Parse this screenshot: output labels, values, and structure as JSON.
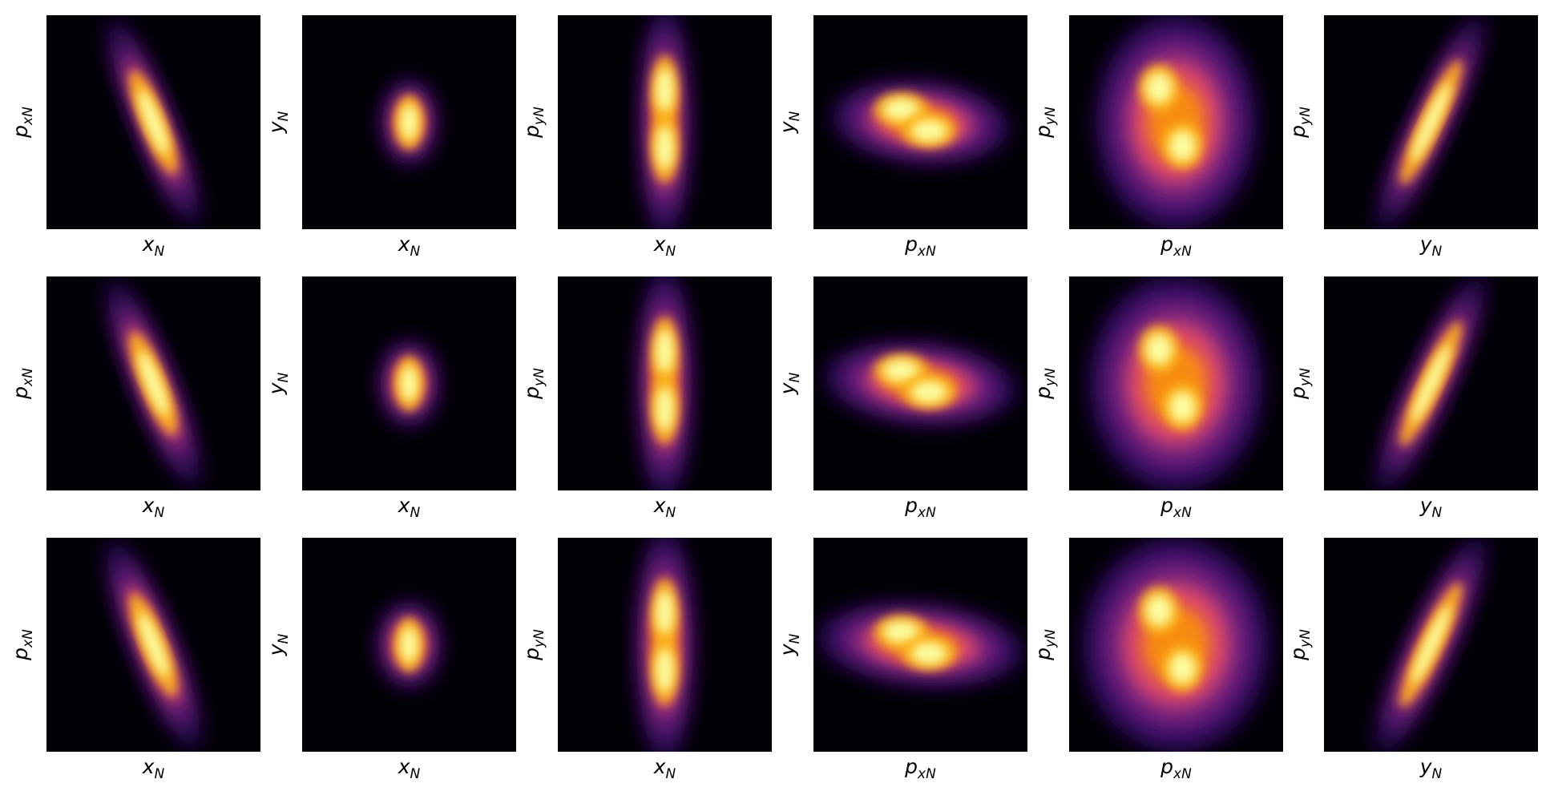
{
  "panels": [
    [
      {
        "xlabel": {
          "base": "x",
          "sub": "N"
        },
        "ylabel": {
          "base": "p",
          "sub": "xN"
        }
      },
      {
        "xlabel": {
          "base": "x",
          "sub": "N"
        },
        "ylabel": {
          "base": "y",
          "sub": "N"
        }
      },
      {
        "xlabel": {
          "base": "x",
          "sub": "N"
        },
        "ylabel": {
          "base": "p",
          "sub": "yN"
        }
      },
      {
        "xlabel": {
          "base": "p",
          "sub": "xN"
        },
        "ylabel": {
          "base": "y",
          "sub": "N"
        }
      },
      {
        "xlabel": {
          "base": "p",
          "sub": "xN"
        },
        "ylabel": {
          "base": "p",
          "sub": "yN"
        }
      },
      {
        "xlabel": {
          "base": "y",
          "sub": "N"
        },
        "ylabel": {
          "base": "p",
          "sub": "yN"
        }
      }
    ],
    [
      {
        "xlabel": {
          "base": "x",
          "sub": "N"
        },
        "ylabel": {
          "base": "p",
          "sub": "xN"
        }
      },
      {
        "xlabel": {
          "base": "x",
          "sub": "N"
        },
        "ylabel": {
          "base": "y",
          "sub": "N"
        }
      },
      {
        "xlabel": {
          "base": "x",
          "sub": "N"
        },
        "ylabel": {
          "base": "p",
          "sub": "yN"
        }
      },
      {
        "xlabel": {
          "base": "p",
          "sub": "xN"
        },
        "ylabel": {
          "base": "y",
          "sub": "N"
        }
      },
      {
        "xlabel": {
          "base": "p",
          "sub": "xN"
        },
        "ylabel": {
          "base": "p",
          "sub": "yN"
        }
      },
      {
        "xlabel": {
          "base": "y",
          "sub": "N"
        },
        "ylabel": {
          "base": "p",
          "sub": "yN"
        }
      }
    ],
    [
      {
        "xlabel": {
          "base": "x",
          "sub": "N"
        },
        "ylabel": {
          "base": "p",
          "sub": "xN"
        }
      },
      {
        "xlabel": {
          "base": "x",
          "sub": "N"
        },
        "ylabel": {
          "base": "y",
          "sub": "N"
        }
      },
      {
        "xlabel": {
          "base": "x",
          "sub": "N"
        },
        "ylabel": {
          "base": "p",
          "sub": "yN"
        }
      },
      {
        "xlabel": {
          "base": "p",
          "sub": "xN"
        },
        "ylabel": {
          "base": "y",
          "sub": "N"
        }
      },
      {
        "xlabel": {
          "base": "p",
          "sub": "xN"
        },
        "ylabel": {
          "base": "p",
          "sub": "yN"
        }
      },
      {
        "xlabel": {
          "base": "y",
          "sub": "N"
        },
        "ylabel": {
          "base": "p",
          "sub": "yN"
        }
      }
    ]
  ]
}
